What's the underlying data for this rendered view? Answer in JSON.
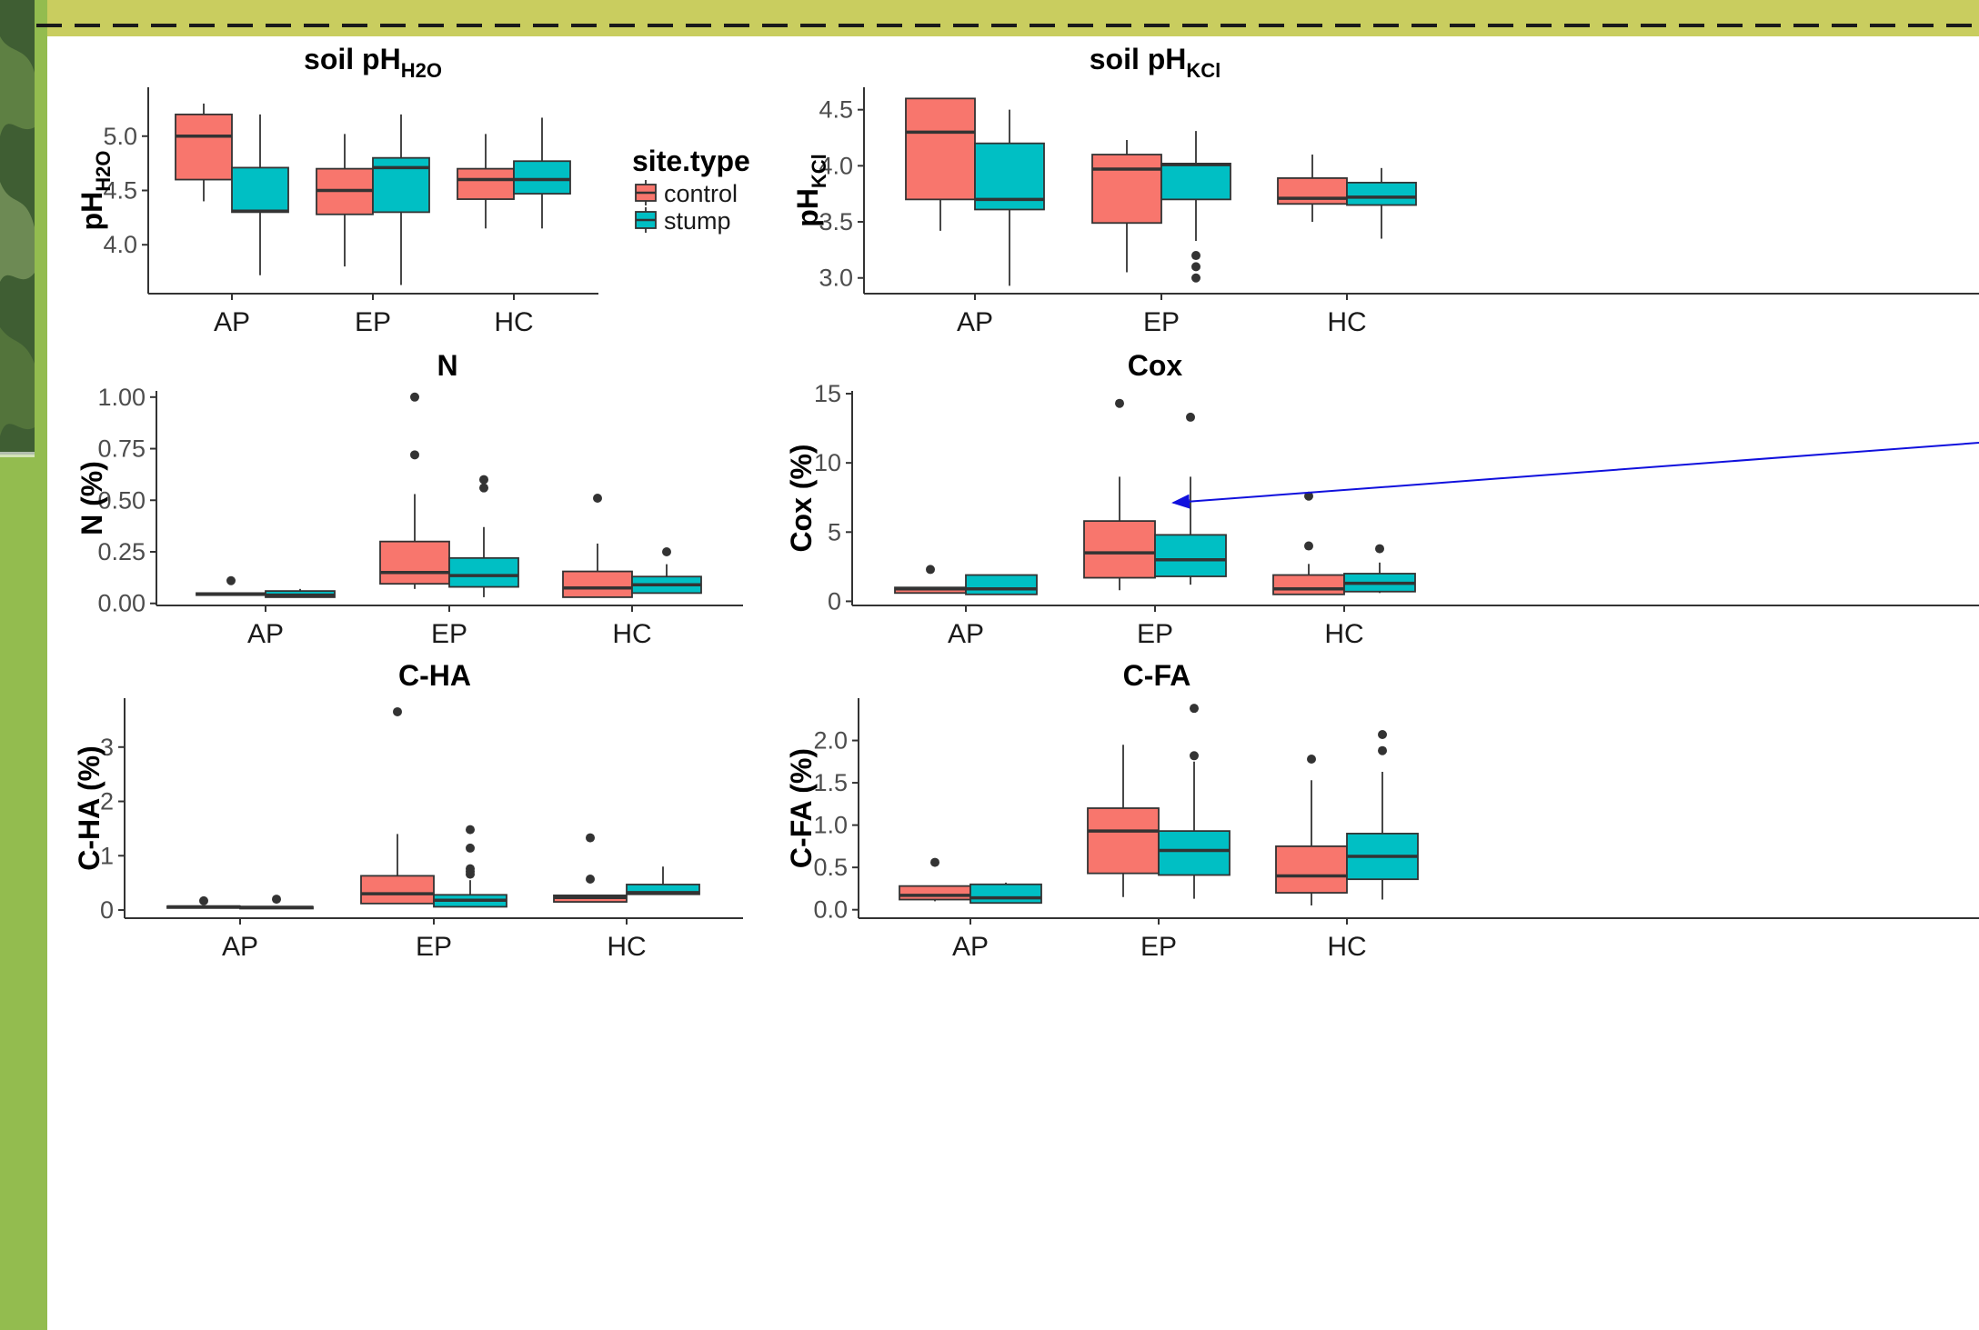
{
  "colors": {
    "frame": "#c9cd5f",
    "frame_left": "#93bc4f",
    "dash": "#1a1a1a",
    "panel": "#ffffff",
    "control": "#f8766d",
    "stump": "#00bfc4",
    "axis": "#333333",
    "arrow": "#1010dd"
  },
  "legend": {
    "title": "site.type",
    "items": [
      {
        "label": "control",
        "color": "#f8766d"
      },
      {
        "label": "stump",
        "color": "#00bfc4"
      }
    ]
  },
  "chart_data": [
    {
      "type": "box",
      "title_main": "soil pH",
      "title_sub": "H2O",
      "ylabel_main": "pH",
      "ylabel_sub": "H2O",
      "categories": [
        "AP",
        "EP",
        "HC"
      ],
      "ylim": [
        3.55,
        5.45
      ],
      "yticks": [
        4.0,
        4.5,
        5.0
      ],
      "ytick_labels": [
        "4.0",
        "4.5",
        "5.0"
      ],
      "series": [
        {
          "name": "control",
          "boxes": [
            {
              "min": 4.4,
              "q1": 4.6,
              "median": 5.0,
              "q3": 5.2,
              "max": 5.3,
              "outliers": []
            },
            {
              "min": 3.8,
              "q1": 4.28,
              "median": 4.5,
              "q3": 4.7,
              "max": 5.02,
              "outliers": []
            },
            {
              "min": 4.15,
              "q1": 4.42,
              "median": 4.6,
              "q3": 4.7,
              "max": 5.02,
              "outliers": []
            }
          ]
        },
        {
          "name": "stump",
          "boxes": [
            {
              "min": 3.72,
              "q1": 4.3,
              "median": 4.31,
              "q3": 4.71,
              "max": 5.2,
              "outliers": []
            },
            {
              "min": 3.63,
              "q1": 4.3,
              "median": 4.71,
              "q3": 4.8,
              "max": 5.2,
              "outliers": []
            },
            {
              "min": 4.15,
              "q1": 4.47,
              "median": 4.6,
              "q3": 4.77,
              "max": 5.17,
              "outliers": []
            }
          ]
        }
      ]
    },
    {
      "type": "box",
      "title_main": "soil pH",
      "title_sub": "KCl",
      "ylabel_main": "pH",
      "ylabel_sub": "KCl",
      "categories": [
        "AP",
        "EP",
        "HC"
      ],
      "ylim": [
        2.86,
        4.7
      ],
      "yticks": [
        3.0,
        3.5,
        4.0,
        4.5
      ],
      "ytick_labels": [
        "3.0",
        "3.5",
        "4.0",
        "4.5"
      ],
      "series": [
        {
          "name": "control",
          "boxes": [
            {
              "min": 3.42,
              "q1": 3.7,
              "median": 4.3,
              "q3": 4.6,
              "max": 4.6,
              "outliers": []
            },
            {
              "min": 3.05,
              "q1": 3.49,
              "median": 3.97,
              "q3": 4.1,
              "max": 4.23,
              "outliers": []
            },
            {
              "min": 3.5,
              "q1": 3.66,
              "median": 3.71,
              "q3": 3.89,
              "max": 4.1,
              "outliers": []
            }
          ]
        },
        {
          "name": "stump",
          "boxes": [
            {
              "min": 2.93,
              "q1": 3.61,
              "median": 3.7,
              "q3": 4.2,
              "max": 4.5,
              "outliers": []
            },
            {
              "min": 3.33,
              "q1": 3.7,
              "median": 4.01,
              "q3": 4.02,
              "max": 4.31,
              "outliers": [
                3.2,
                3.1,
                3.0
              ]
            },
            {
              "min": 3.35,
              "q1": 3.65,
              "median": 3.72,
              "q3": 3.85,
              "max": 3.98,
              "outliers": []
            }
          ]
        }
      ]
    },
    {
      "type": "box",
      "title_main": "N",
      "title_sub": "",
      "ylabel_main": "N (%)",
      "ylabel_sub": "",
      "categories": [
        "AP",
        "EP",
        "HC"
      ],
      "ylim": [
        -0.01,
        1.03
      ],
      "yticks": [
        0.0,
        0.25,
        0.5,
        0.75,
        1.0
      ],
      "ytick_labels": [
        "0.00",
        "0.25",
        "0.50",
        "0.75",
        "1.00"
      ],
      "series": [
        {
          "name": "control",
          "boxes": [
            {
              "min": 0.04,
              "q1": 0.04,
              "median": 0.045,
              "q3": 0.05,
              "max": 0.05,
              "outliers": [
                0.11
              ]
            },
            {
              "min": 0.07,
              "q1": 0.095,
              "median": 0.15,
              "q3": 0.3,
              "max": 0.53,
              "outliers": [
                0.72,
                1.0
              ]
            },
            {
              "min": 0.03,
              "q1": 0.03,
              "median": 0.075,
              "q3": 0.155,
              "max": 0.29,
              "outliers": [
                0.51
              ]
            }
          ]
        },
        {
          "name": "stump",
          "boxes": [
            {
              "min": 0.03,
              "q1": 0.03,
              "median": 0.04,
              "q3": 0.06,
              "max": 0.07,
              "outliers": []
            },
            {
              "min": 0.03,
              "q1": 0.08,
              "median": 0.135,
              "q3": 0.22,
              "max": 0.37,
              "outliers": [
                0.56,
                0.6
              ]
            },
            {
              "min": 0.05,
              "q1": 0.05,
              "median": 0.09,
              "q3": 0.13,
              "max": 0.19,
              "outliers": [
                0.25
              ]
            }
          ]
        }
      ]
    },
    {
      "type": "box",
      "title_main": "Cox",
      "title_sub": "",
      "ylabel_main": "Cox (%)",
      "ylabel_sub": "",
      "categories": [
        "AP",
        "EP",
        "HC"
      ],
      "ylim": [
        -0.3,
        15.2
      ],
      "yticks": [
        0,
        5,
        10,
        15
      ],
      "ytick_labels": [
        "0",
        "5",
        "10",
        "15"
      ],
      "series": [
        {
          "name": "control",
          "boxes": [
            {
              "min": 0.6,
              "q1": 0.6,
              "median": 0.9,
              "q3": 1.0,
              "max": 1.0,
              "outliers": [
                2.3
              ]
            },
            {
              "min": 0.8,
              "q1": 1.7,
              "median": 3.5,
              "q3": 5.8,
              "max": 9.0,
              "outliers": [
                14.3
              ]
            },
            {
              "min": 0.5,
              "q1": 0.5,
              "median": 0.9,
              "q3": 1.9,
              "max": 2.7,
              "outliers": [
                4.0,
                7.6
              ]
            }
          ]
        },
        {
          "name": "stump",
          "boxes": [
            {
              "min": 0.5,
              "q1": 0.5,
              "median": 0.9,
              "q3": 1.9,
              "max": 1.9,
              "outliers": []
            },
            {
              "min": 1.2,
              "q1": 1.8,
              "median": 3.0,
              "q3": 4.8,
              "max": 9.0,
              "outliers": [
                13.3
              ]
            },
            {
              "min": 0.6,
              "q1": 0.7,
              "median": 1.3,
              "q3": 2.0,
              "max": 2.8,
              "outliers": [
                3.8
              ]
            }
          ]
        }
      ],
      "annotation": "arrow"
    },
    {
      "type": "box",
      "title_main": "C-HA",
      "title_sub": "",
      "ylabel_main": "C-HA (%)",
      "ylabel_sub": "",
      "categories": [
        "AP",
        "EP",
        "HC"
      ],
      "ylim": [
        -0.15,
        3.9
      ],
      "yticks": [
        0,
        1,
        2,
        3
      ],
      "ytick_labels": [
        "0",
        "1",
        "2",
        "3"
      ],
      "series": [
        {
          "name": "control",
          "boxes": [
            {
              "min": 0.03,
              "q1": 0.04,
              "median": 0.06,
              "q3": 0.07,
              "max": 0.08,
              "outliers": [
                0.17
              ]
            },
            {
              "min": 0.12,
              "q1": 0.12,
              "median": 0.3,
              "q3": 0.63,
              "max": 1.4,
              "outliers": [
                3.65
              ]
            },
            {
              "min": 0.15,
              "q1": 0.15,
              "median": 0.23,
              "q3": 0.27,
              "max": 0.28,
              "outliers": [
                0.57,
                1.33
              ]
            }
          ]
        },
        {
          "name": "stump",
          "boxes": [
            {
              "min": 0.03,
              "q1": 0.04,
              "median": 0.05,
              "q3": 0.06,
              "max": 0.07,
              "outliers": [
                0.2
              ]
            },
            {
              "min": 0.06,
              "q1": 0.06,
              "median": 0.18,
              "q3": 0.28,
              "max": 0.55,
              "outliers": [
                0.66,
                0.71,
                0.76,
                1.14,
                1.48
              ]
            },
            {
              "min": 0.28,
              "q1": 0.29,
              "median": 0.32,
              "q3": 0.47,
              "max": 0.8,
              "outliers": []
            }
          ]
        }
      ]
    },
    {
      "type": "box",
      "title_main": "C-FA",
      "title_sub": "",
      "ylabel_main": "C-FA (%)",
      "ylabel_sub": "",
      "categories": [
        "AP",
        "EP",
        "HC"
      ],
      "ylim": [
        -0.1,
        2.5
      ],
      "yticks": [
        0.0,
        0.5,
        1.0,
        1.5,
        2.0
      ],
      "ytick_labels": [
        "0.0",
        "0.5",
        "1.0",
        "1.5",
        "2.0"
      ],
      "series": [
        {
          "name": "control",
          "boxes": [
            {
              "min": 0.1,
              "q1": 0.12,
              "median": 0.17,
              "q3": 0.28,
              "max": 0.28,
              "outliers": [
                0.56
              ]
            },
            {
              "min": 0.15,
              "q1": 0.43,
              "median": 0.93,
              "q3": 1.2,
              "max": 1.95,
              "outliers": []
            },
            {
              "min": 0.05,
              "q1": 0.2,
              "median": 0.4,
              "q3": 0.75,
              "max": 1.53,
              "outliers": [
                1.78
              ]
            }
          ]
        },
        {
          "name": "stump",
          "boxes": [
            {
              "min": 0.08,
              "q1": 0.08,
              "median": 0.14,
              "q3": 0.3,
              "max": 0.32,
              "outliers": []
            },
            {
              "min": 0.13,
              "q1": 0.41,
              "median": 0.7,
              "q3": 0.93,
              "max": 1.75,
              "outliers": [
                1.82,
                2.38
              ]
            },
            {
              "min": 0.12,
              "q1": 0.36,
              "median": 0.63,
              "q3": 0.9,
              "max": 1.63,
              "outliers": [
                1.88,
                2.07
              ]
            }
          ]
        }
      ]
    }
  ]
}
